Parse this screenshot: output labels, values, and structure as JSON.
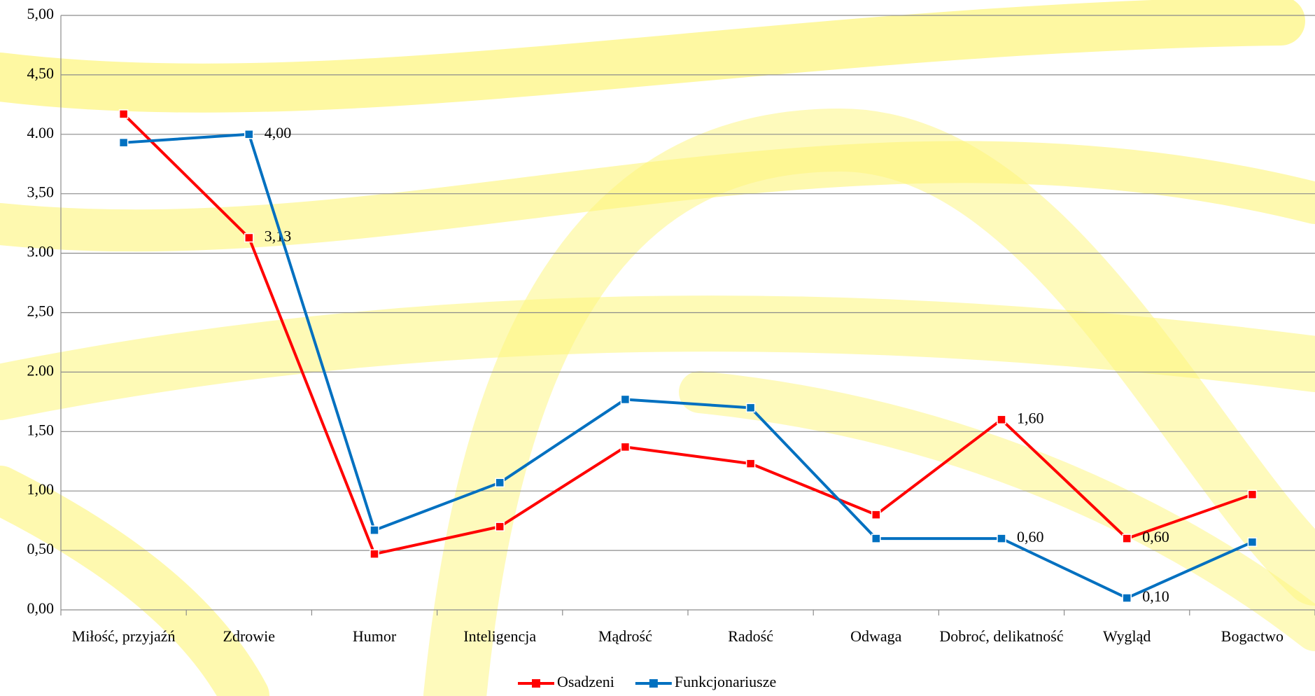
{
  "chart_data": {
    "type": "line",
    "categories": [
      "Miłość, przyjaźń",
      "Zdrowie",
      "Humor",
      "Inteligencja",
      "Mądrość",
      "Radość",
      "Odwaga",
      "Dobroć, delikatność",
      "Wygląd",
      "Bogactwo"
    ],
    "series": [
      {
        "name": "Osadzeni",
        "color": "#ff0000",
        "values": [
          4.17,
          3.13,
          0.47,
          0.7,
          1.37,
          1.23,
          0.8,
          1.6,
          0.6,
          0.97
        ],
        "value_labels": [
          null,
          "3,13",
          null,
          null,
          null,
          null,
          null,
          "1,60",
          "0,60",
          null
        ]
      },
      {
        "name": "Funkcjonariusze",
        "color": "#0070c0",
        "values": [
          3.93,
          4.0,
          0.67,
          1.07,
          1.77,
          1.7,
          0.6,
          0.6,
          0.1,
          0.57
        ],
        "value_labels": [
          null,
          "4,00",
          null,
          null,
          null,
          null,
          null,
          "0,60",
          "0,10",
          null
        ]
      }
    ],
    "ylim": [
      0,
      5
    ],
    "yticks": [
      {
        "value": 0,
        "label": "0,00"
      },
      {
        "value": 0.5,
        "label": "0,50"
      },
      {
        "value": 1,
        "label": "1,00"
      },
      {
        "value": 1.5,
        "label": "1,50"
      },
      {
        "value": 2,
        "label": "2.00"
      },
      {
        "value": 2.5,
        "label": "2,50"
      },
      {
        "value": 3,
        "label": "3.00"
      },
      {
        "value": 3.5,
        "label": "3,50"
      },
      {
        "value": 4,
        "label": "4.00"
      },
      {
        "value": 4.5,
        "label": "4,50"
      },
      {
        "value": 5,
        "label": "5,00"
      }
    ],
    "grid": true,
    "legend": "bottom"
  }
}
